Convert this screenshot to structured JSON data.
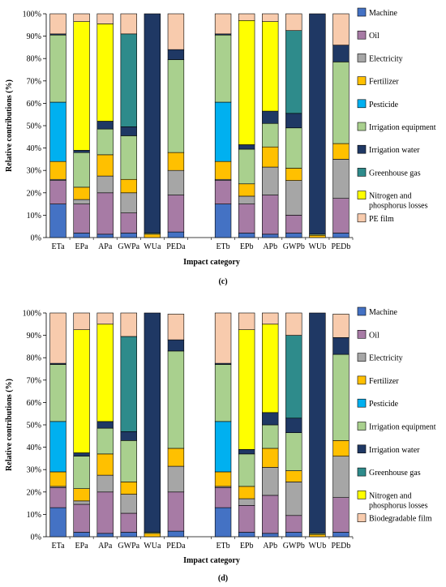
{
  "chart_data": [
    {
      "type": "bar",
      "stacked": true,
      "panel_label": "(c)",
      "xlabel": "Impact category",
      "ylabel": "Relative contributions (%)",
      "ylim": [
        0,
        100
      ],
      "yticks": [
        "0%",
        "10%",
        "20%",
        "30%",
        "40%",
        "50%",
        "60%",
        "70%",
        "80%",
        "90%",
        "100%"
      ],
      "categories": [
        "ETa",
        "EPa",
        "APa",
        "GWPa",
        "WUa",
        "PEDa",
        "",
        "ETb",
        "EPb",
        "APb",
        "GWPb",
        "WUb",
        "PEDb"
      ],
      "legend_position": "right",
      "series": [
        {
          "name": "Machine",
          "color": "#4472C4",
          "values": [
            15,
            2,
            1.5,
            2,
            0,
            2.5,
            0,
            15,
            2,
            1.5,
            2,
            0,
            2
          ]
        },
        {
          "name": "Oil",
          "color": "#A77BA5",
          "values": [
            10.5,
            13,
            18.5,
            9,
            0,
            16.5,
            0,
            10.5,
            13,
            17.5,
            8,
            0,
            15.5
          ]
        },
        {
          "name": "Electricity",
          "color": "#A6A6A6",
          "values": [
            0.5,
            2,
            7.5,
            9,
            0,
            11,
            0,
            0.5,
            3.5,
            12.5,
            15.5,
            0,
            17.5
          ]
        },
        {
          "name": "Fertilizer",
          "color": "#FFC000",
          "values": [
            8,
            5.5,
            9.5,
            6,
            1.5,
            8,
            0,
            8,
            5.5,
            9,
            5.5,
            1,
            7
          ]
        },
        {
          "name": "Pesticide",
          "color": "#00B0F0",
          "values": [
            26.5,
            0,
            0,
            0,
            0,
            0,
            0,
            26.5,
            0,
            0,
            0,
            0,
            0
          ]
        },
        {
          "name": "Irrigation equipment",
          "color": "#A9D08E",
          "values": [
            30,
            15.5,
            11.5,
            19.5,
            0.5,
            41.5,
            0,
            30,
            15.5,
            10.5,
            18,
            0.5,
            36.5
          ]
        },
        {
          "name": "Irrigation water",
          "color": "#1F3864",
          "values": [
            0.5,
            1,
            3.5,
            4,
            98,
            4.5,
            0,
            0.5,
            2,
            5.5,
            6.5,
            98.5,
            7.5
          ]
        },
        {
          "name": "Greenhouse gas",
          "color": "#2E8B8B",
          "values": [
            0,
            0,
            0,
            41.5,
            0,
            0,
            0,
            0,
            0,
            0,
            37,
            0,
            0
          ]
        },
        {
          "name": "Nitrogen and phosphorus losses",
          "color": "#FFFF00",
          "values": [
            0,
            57.5,
            43.5,
            0,
            0,
            0,
            0,
            0,
            55.5,
            40,
            0,
            0,
            0
          ]
        },
        {
          "name": "PE film",
          "color": "#F8CBAD",
          "values": [
            9,
            3.5,
            4.5,
            9,
            0,
            16,
            0,
            9,
            3,
            3.5,
            7.5,
            0,
            14
          ]
        }
      ]
    },
    {
      "type": "bar",
      "stacked": true,
      "panel_label": "(d)",
      "xlabel": "Impact category",
      "ylabel": "Relative contributions (%)",
      "ylim": [
        0,
        100
      ],
      "yticks": [
        "0%",
        "10%",
        "20%",
        "30%",
        "40%",
        "50%",
        "60%",
        "70%",
        "80%",
        "90%",
        "100%"
      ],
      "categories": [
        "ETa",
        "EPa",
        "APa",
        "GWPa",
        "WUa",
        "PEDa",
        "",
        "ETb",
        "EPb",
        "APb",
        "GWPb",
        "WUb",
        "PEDb"
      ],
      "legend_position": "right",
      "series": [
        {
          "name": "Machine",
          "color": "#4472C4",
          "values": [
            13,
            2,
            1.5,
            2,
            0,
            2.5,
            0,
            13,
            2,
            1.5,
            2,
            0,
            2
          ]
        },
        {
          "name": "Oil",
          "color": "#A77BA5",
          "values": [
            9,
            12.5,
            18.5,
            8.5,
            0,
            17.5,
            0,
            9,
            12,
            17,
            7.5,
            0,
            15.5
          ]
        },
        {
          "name": "Electricity",
          "color": "#A6A6A6",
          "values": [
            0.5,
            1.5,
            7.5,
            8.5,
            0,
            11.5,
            0,
            0.5,
            3,
            12.5,
            15,
            0,
            18.5
          ]
        },
        {
          "name": "Fertilizer",
          "color": "#FFC000",
          "values": [
            6.5,
            5.5,
            9.5,
            5.5,
            1.5,
            8,
            0,
            6.5,
            5.5,
            8.5,
            5,
            1,
            7
          ]
        },
        {
          "name": "Pesticide",
          "color": "#00B0F0",
          "values": [
            22.5,
            0,
            0,
            0,
            0,
            0,
            0,
            22.5,
            0,
            0,
            0,
            0,
            0
          ]
        },
        {
          "name": "Irrigation equipment",
          "color": "#A9D08E",
          "values": [
            25.5,
            14.5,
            11.5,
            18.5,
            0.5,
            43.5,
            0,
            25.5,
            14.5,
            10.5,
            17,
            0.5,
            38.5
          ]
        },
        {
          "name": "Irrigation water",
          "color": "#1F3864",
          "values": [
            0.5,
            1.5,
            3,
            4,
            98,
            5,
            0,
            0.5,
            2,
            5.5,
            6.5,
            98.5,
            7.5
          ]
        },
        {
          "name": "Greenhouse gas",
          "color": "#2E8B8B",
          "values": [
            0,
            0,
            0,
            42.5,
            0,
            0,
            0,
            0,
            0,
            0,
            37,
            0,
            0
          ]
        },
        {
          "name": "Nitrogen and phosphorus losses",
          "color": "#FFFF00",
          "values": [
            0,
            55,
            43.5,
            0,
            0,
            0,
            0,
            0,
            53.5,
            39.5,
            0,
            0,
            0
          ]
        },
        {
          "name": "Biodegradable film",
          "color": "#F8CBAD",
          "values": [
            22.5,
            7.5,
            5,
            10.5,
            0,
            11.5,
            0,
            22.5,
            7.5,
            5,
            10,
            0,
            10.5
          ]
        }
      ]
    }
  ]
}
